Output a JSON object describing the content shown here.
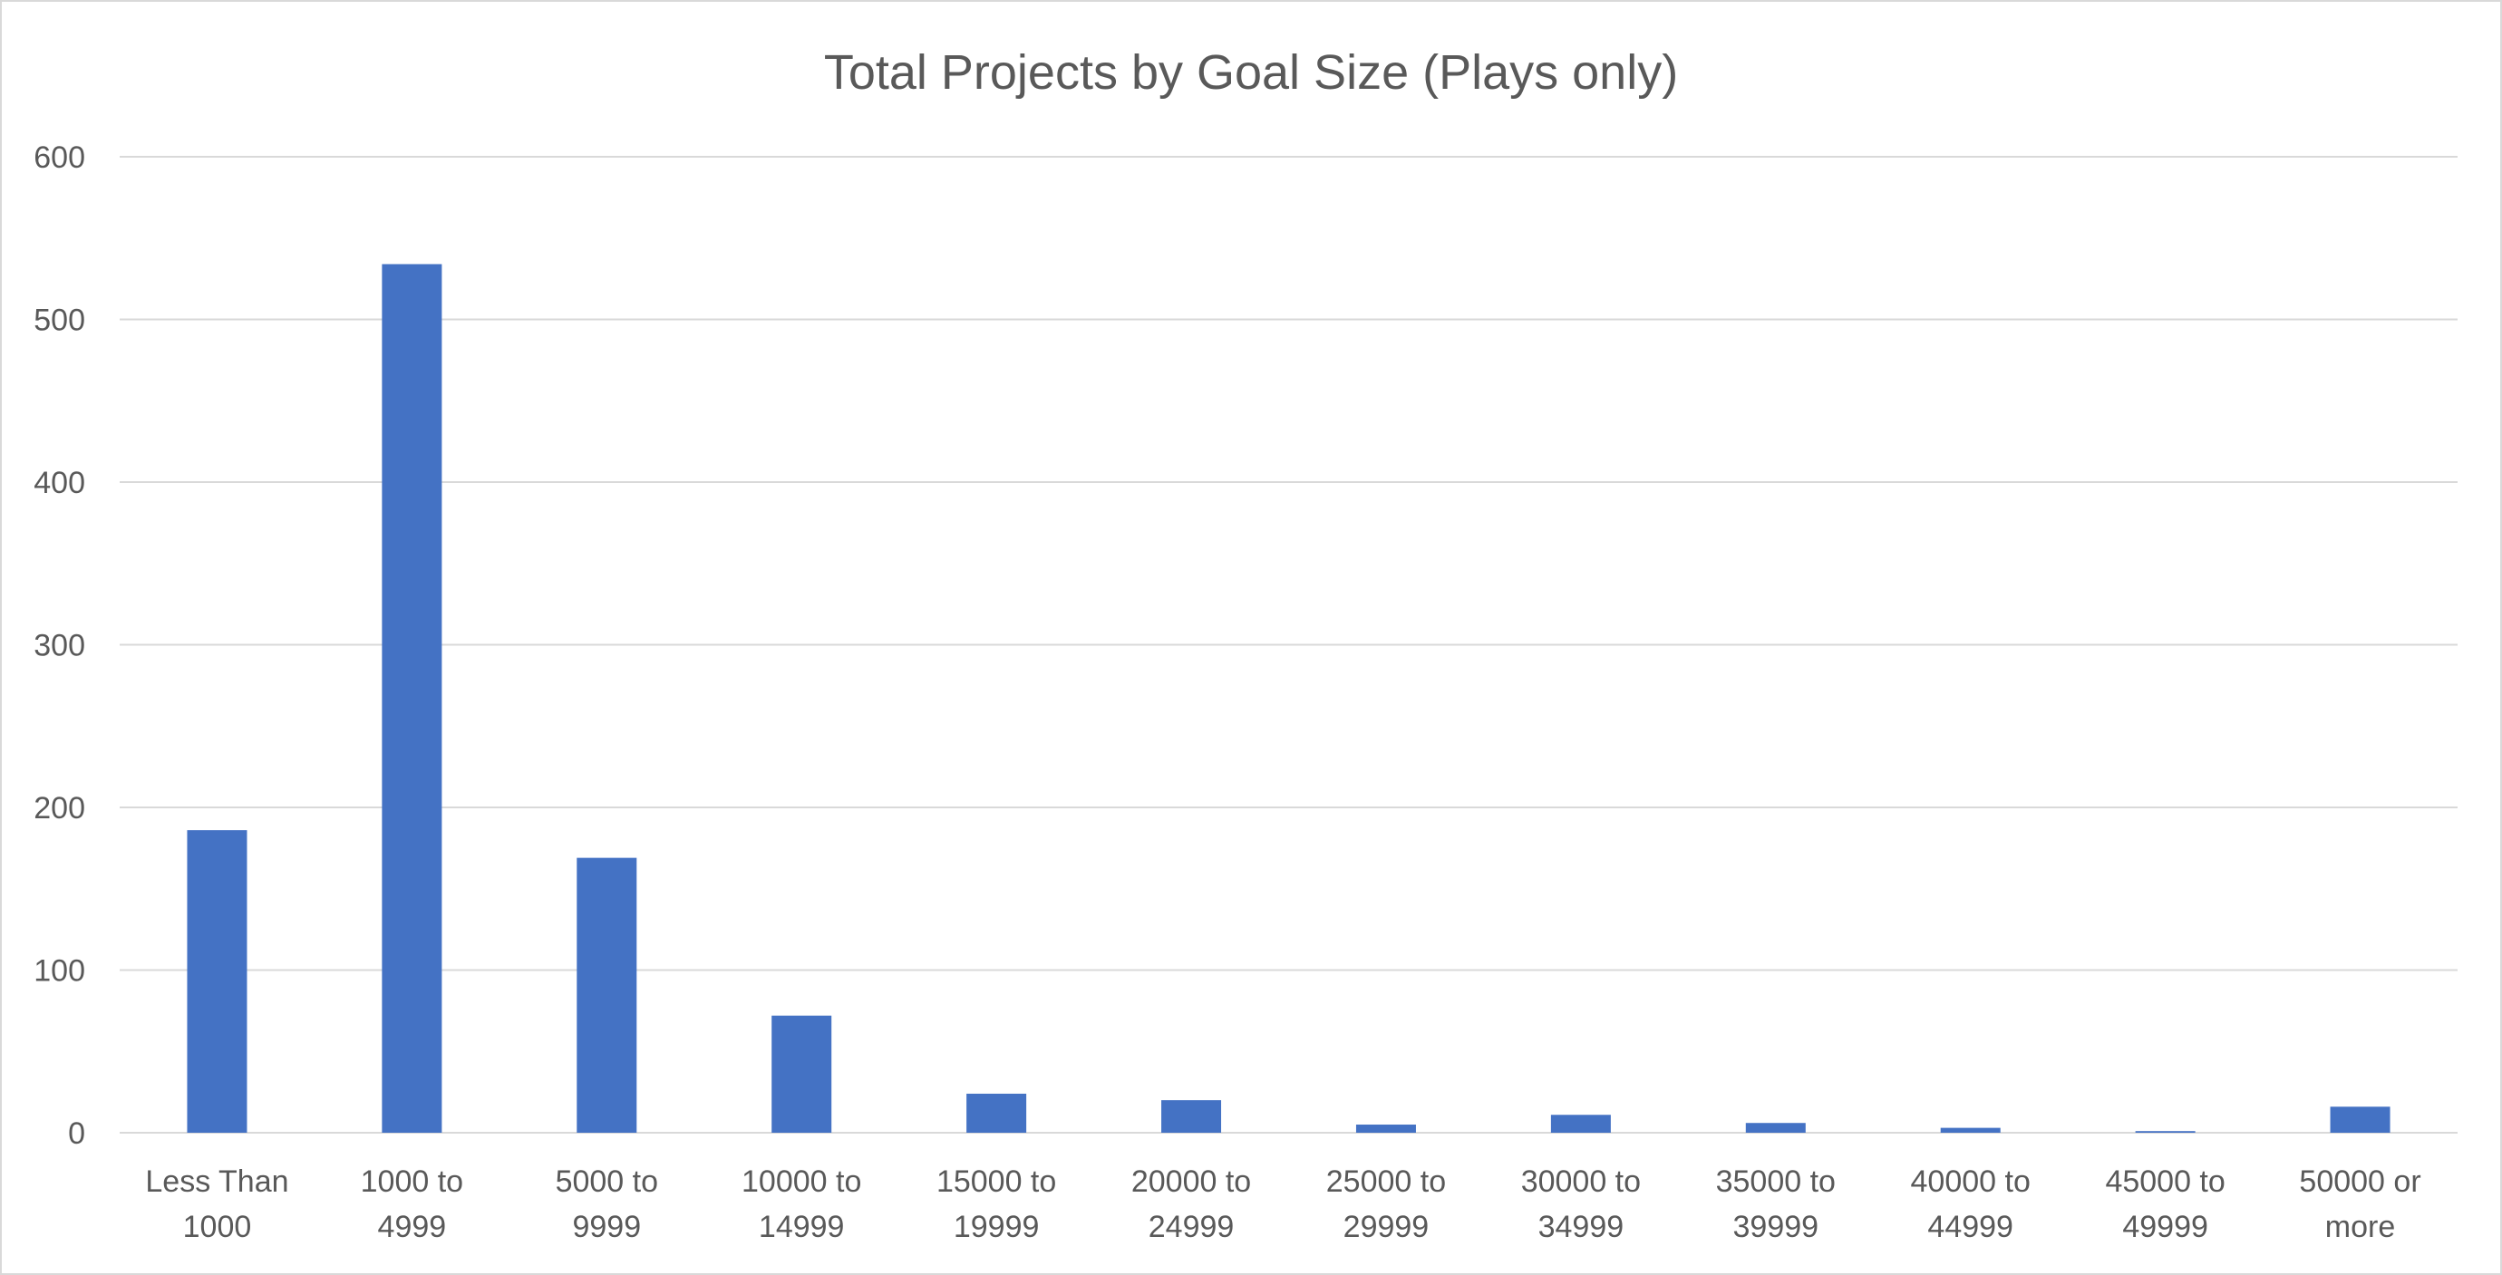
{
  "chart_data": {
    "type": "bar",
    "title": "Total Projects by Goal Size (Plays only)",
    "xlabel": "",
    "ylabel": "",
    "categories": [
      [
        "Less Than",
        "1000"
      ],
      [
        "1000 to",
        "4999"
      ],
      [
        "5000 to",
        "9999"
      ],
      [
        "10000 to",
        "14999"
      ],
      [
        "15000 to",
        "19999"
      ],
      [
        "20000 to",
        "24999"
      ],
      [
        "25000 to",
        "29999"
      ],
      [
        "30000 to",
        "34999"
      ],
      [
        "35000 to",
        "39999"
      ],
      [
        "40000 to",
        "44999"
      ],
      [
        "45000 to",
        "49999"
      ],
      [
        "50000 or",
        "more"
      ]
    ],
    "values": [
      186,
      534,
      169,
      72,
      24,
      20,
      5,
      11,
      6,
      3,
      1,
      16
    ],
    "ylim": [
      0,
      600
    ],
    "yticks": [
      0,
      100,
      200,
      300,
      400,
      500,
      600
    ],
    "grid": true,
    "legend": "none",
    "bar_color": "#4472c4",
    "grid_color": "#d9d9d9",
    "text_color": "#595959"
  }
}
